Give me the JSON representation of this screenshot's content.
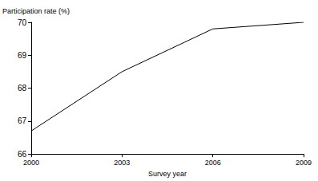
{
  "chart_data": {
    "type": "line",
    "x_label": "Survey year",
    "y_label": "Participation rate (%)",
    "x": [
      2000,
      2003,
      2006,
      2009
    ],
    "values": [
      66.7,
      68.5,
      69.8,
      70.0
    ],
    "color": "#000000",
    "xlim": [
      2000,
      2009
    ],
    "xticks": [
      2000,
      2003,
      2006,
      2009
    ],
    "ylim": [
      66,
      70
    ],
    "yticks": [
      66,
      67,
      68,
      69,
      70
    ],
    "grid": false
  }
}
